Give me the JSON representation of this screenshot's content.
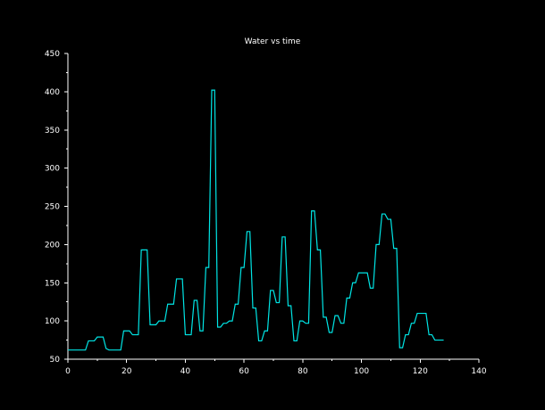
{
  "chart_data": {
    "type": "line",
    "title": "Water vs time",
    "xlabel": "",
    "ylabel": "",
    "xlim": [
      0,
      140
    ],
    "ylim": [
      50,
      450
    ],
    "x_ticks": [
      0,
      20,
      40,
      60,
      80,
      100,
      120,
      140
    ],
    "y_ticks": [
      50,
      100,
      150,
      200,
      250,
      300,
      350,
      400,
      450
    ],
    "grid": false,
    "background_color": "#000000",
    "axis_color": "#ffffff",
    "series": [
      {
        "color": "#00e5e5",
        "points": [
          [
            0,
            62
          ],
          [
            1,
            62
          ],
          [
            2,
            62
          ],
          [
            3,
            62
          ],
          [
            4,
            62
          ],
          [
            5,
            62
          ],
          [
            6,
            62
          ],
          [
            7,
            74
          ],
          [
            8,
            74
          ],
          [
            9,
            74
          ],
          [
            10,
            79
          ],
          [
            11,
            79
          ],
          [
            12,
            79
          ],
          [
            13,
            64
          ],
          [
            14,
            62
          ],
          [
            15,
            62
          ],
          [
            16,
            62
          ],
          [
            17,
            62
          ],
          [
            18,
            62
          ],
          [
            19,
            87
          ],
          [
            20,
            87
          ],
          [
            21,
            87
          ],
          [
            22,
            82
          ],
          [
            23,
            82
          ],
          [
            24,
            82
          ],
          [
            25,
            193
          ],
          [
            26,
            193
          ],
          [
            27,
            193
          ],
          [
            28,
            95
          ],
          [
            29,
            95
          ],
          [
            30,
            95
          ],
          [
            31,
            100
          ],
          [
            32,
            100
          ],
          [
            33,
            100
          ],
          [
            34,
            122
          ],
          [
            35,
            122
          ],
          [
            36,
            122
          ],
          [
            37,
            155
          ],
          [
            38,
            155
          ],
          [
            39,
            155
          ],
          [
            40,
            82
          ],
          [
            41,
            82
          ],
          [
            42,
            82
          ],
          [
            43,
            127
          ],
          [
            44,
            127
          ],
          [
            45,
            87
          ],
          [
            46,
            87
          ],
          [
            47,
            170
          ],
          [
            48,
            170
          ],
          [
            49,
            402
          ],
          [
            50,
            402
          ],
          [
            51,
            92
          ],
          [
            52,
            92
          ],
          [
            53,
            97
          ],
          [
            54,
            97
          ],
          [
            55,
            100
          ],
          [
            56,
            100
          ],
          [
            57,
            122
          ],
          [
            58,
            122
          ],
          [
            59,
            170
          ],
          [
            60,
            170
          ],
          [
            61,
            217
          ],
          [
            62,
            217
          ],
          [
            63,
            117
          ],
          [
            64,
            117
          ],
          [
            65,
            74
          ],
          [
            66,
            74
          ],
          [
            67,
            87
          ],
          [
            68,
            87
          ],
          [
            69,
            140
          ],
          [
            70,
            140
          ],
          [
            71,
            124
          ],
          [
            72,
            124
          ],
          [
            73,
            210
          ],
          [
            74,
            210
          ],
          [
            75,
            120
          ],
          [
            76,
            120
          ],
          [
            77,
            74
          ],
          [
            78,
            74
          ],
          [
            79,
            100
          ],
          [
            80,
            100
          ],
          [
            81,
            97
          ],
          [
            82,
            97
          ],
          [
            83,
            244
          ],
          [
            84,
            244
          ],
          [
            85,
            193
          ],
          [
            86,
            193
          ],
          [
            87,
            105
          ],
          [
            88,
            105
          ],
          [
            89,
            85
          ],
          [
            90,
            85
          ],
          [
            91,
            107
          ],
          [
            92,
            107
          ],
          [
            93,
            97
          ],
          [
            94,
            97
          ],
          [
            95,
            130
          ],
          [
            96,
            130
          ],
          [
            97,
            150
          ],
          [
            98,
            150
          ],
          [
            99,
            163
          ],
          [
            100,
            163
          ],
          [
            101,
            163
          ],
          [
            102,
            163
          ],
          [
            103,
            143
          ],
          [
            104,
            143
          ],
          [
            105,
            200
          ],
          [
            106,
            200
          ],
          [
            107,
            240
          ],
          [
            108,
            240
          ],
          [
            109,
            233
          ],
          [
            110,
            233
          ],
          [
            111,
            195
          ],
          [
            112,
            195
          ],
          [
            113,
            65
          ],
          [
            114,
            65
          ],
          [
            115,
            82
          ],
          [
            116,
            82
          ],
          [
            117,
            97
          ],
          [
            118,
            97
          ],
          [
            119,
            110
          ],
          [
            120,
            110
          ],
          [
            121,
            110
          ],
          [
            122,
            110
          ],
          [
            123,
            82
          ],
          [
            124,
            82
          ],
          [
            125,
            75
          ],
          [
            126,
            75
          ],
          [
            127,
            75
          ],
          [
            128,
            75
          ]
        ]
      }
    ]
  }
}
